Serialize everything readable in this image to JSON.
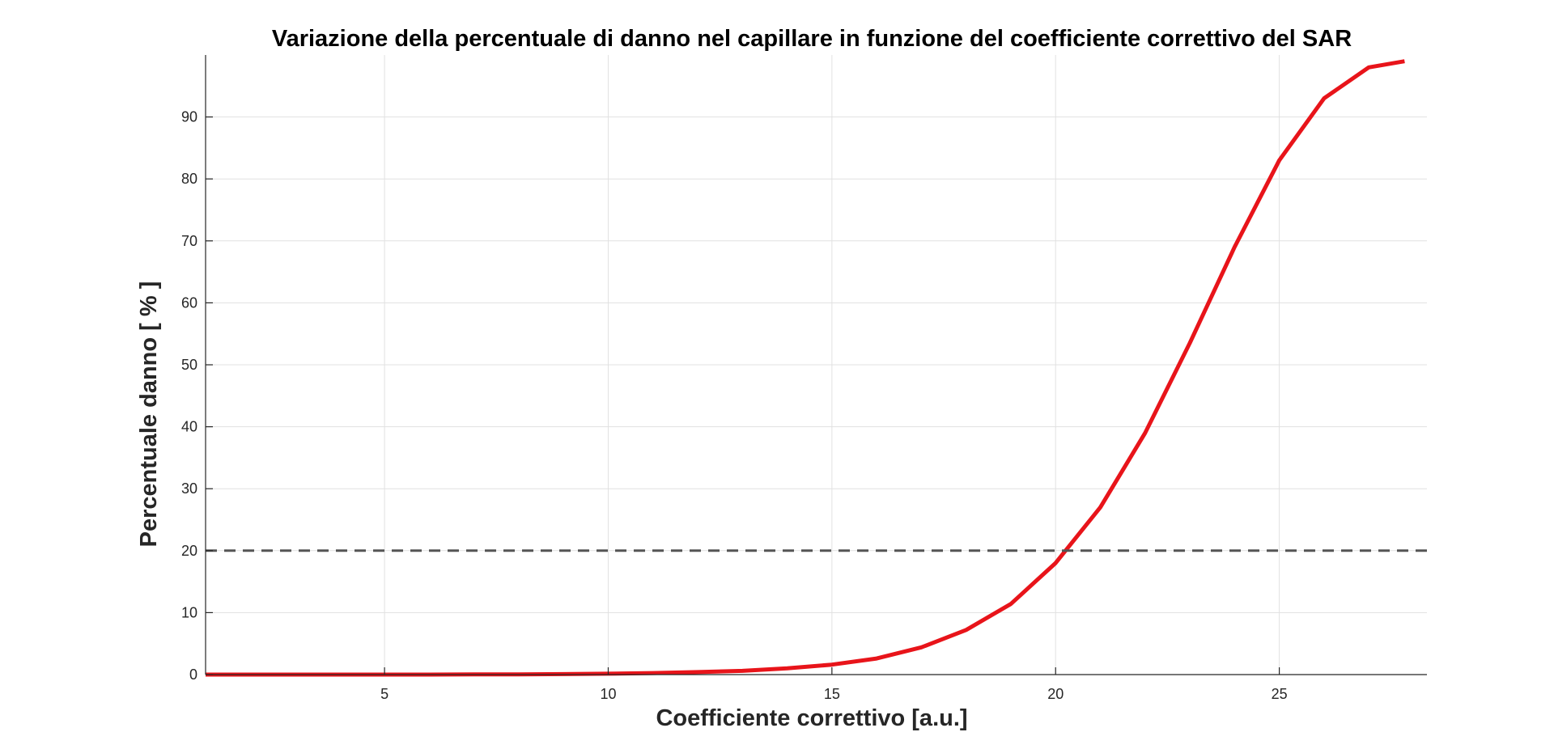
{
  "chart_data": {
    "type": "line",
    "title": "Variazione della percentuale di danno nel capillare in funzione del coefficiente correttivo del SAR",
    "xlabel": "Coefficiente correttivo [a.u.]",
    "ylabel": "Percentuale danno [ % ]",
    "xlim": [
      1,
      28.3
    ],
    "ylim": [
      0,
      100
    ],
    "xticks": [
      5,
      10,
      15,
      20,
      25
    ],
    "yticks": [
      0,
      10,
      20,
      30,
      40,
      50,
      60,
      70,
      80,
      90
    ],
    "grid": true,
    "series": [
      {
        "color": "#e8141a",
        "line_style": "solid",
        "x": [
          1,
          2,
          3,
          4,
          5,
          6,
          7,
          8,
          9,
          10,
          11,
          12,
          13,
          14,
          15,
          16,
          17,
          18,
          19,
          20,
          21,
          22,
          23,
          24,
          25,
          26,
          27,
          27.8
        ],
        "y": [
          0,
          0,
          0,
          0,
          0,
          0,
          0.02,
          0.04,
          0.08,
          0.15,
          0.25,
          0.4,
          0.6,
          1.0,
          1.6,
          2.6,
          4.4,
          7.2,
          11.4,
          18,
          27,
          39,
          53.5,
          69,
          83,
          93,
          98,
          99
        ]
      },
      {
        "color": "#555555",
        "line_style": "dashed",
        "x": [
          1,
          28.3
        ],
        "y": [
          20,
          20
        ]
      }
    ]
  }
}
